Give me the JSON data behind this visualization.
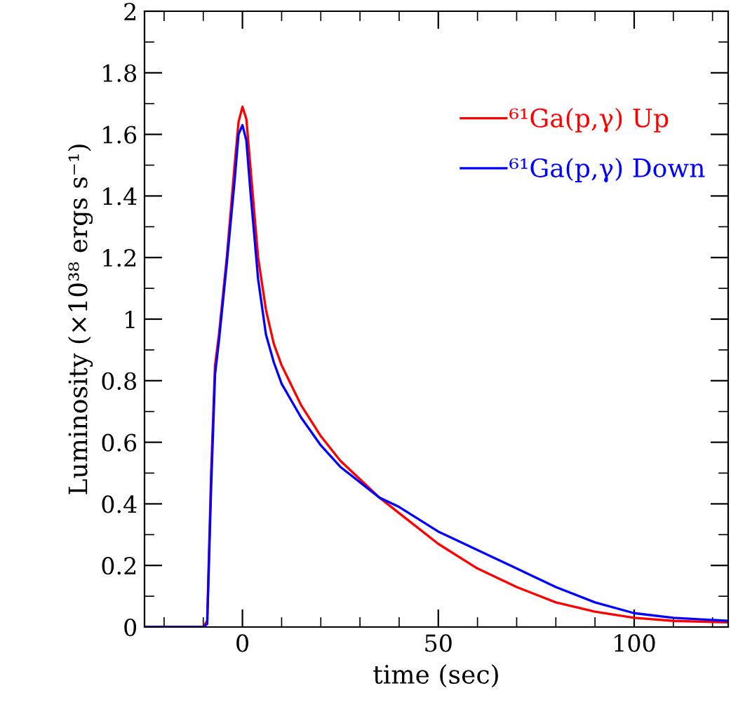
{
  "chart_data": {
    "type": "line",
    "xlabel": "time (sec)",
    "ylabel": "Luminosity (×10³⁸ ergs s⁻¹)",
    "x": [
      -25,
      -10,
      -9,
      -8,
      -7,
      -6,
      -4,
      -2,
      -1,
      0,
      1,
      2,
      4,
      6,
      8,
      10,
      15,
      20,
      25,
      30,
      35,
      40,
      50,
      60,
      70,
      80,
      90,
      100,
      110,
      124
    ],
    "series": [
      {
        "name": "⁶¹Ga(p,γ) Up",
        "color": "#ff0000",
        "values": [
          0,
          0,
          0.02,
          0.5,
          0.85,
          0.95,
          1.2,
          1.5,
          1.64,
          1.69,
          1.65,
          1.5,
          1.2,
          1.03,
          0.92,
          0.85,
          0.72,
          0.62,
          0.54,
          0.48,
          0.42,
          0.37,
          0.27,
          0.19,
          0.13,
          0.08,
          0.05,
          0.03,
          0.02,
          0.015
        ]
      },
      {
        "name": "⁶¹Ga(p,γ) Down",
        "color": "#0000ff",
        "values": [
          0,
          0,
          0.01,
          0.45,
          0.82,
          0.93,
          1.18,
          1.45,
          1.6,
          1.63,
          1.58,
          1.42,
          1.13,
          0.95,
          0.86,
          0.79,
          0.68,
          0.59,
          0.52,
          0.47,
          0.42,
          0.39,
          0.31,
          0.25,
          0.19,
          0.13,
          0.08,
          0.045,
          0.03,
          0.02
        ]
      }
    ],
    "xlim": [
      -25,
      124
    ],
    "xticks": [
      0,
      50,
      100
    ],
    "ylim": [
      0,
      2
    ],
    "yticks": [
      0,
      0.2,
      0.4,
      0.6,
      0.8,
      1,
      1.2,
      1.4,
      1.6,
      1.8,
      2
    ],
    "legend": "top right",
    "grid": false
  }
}
